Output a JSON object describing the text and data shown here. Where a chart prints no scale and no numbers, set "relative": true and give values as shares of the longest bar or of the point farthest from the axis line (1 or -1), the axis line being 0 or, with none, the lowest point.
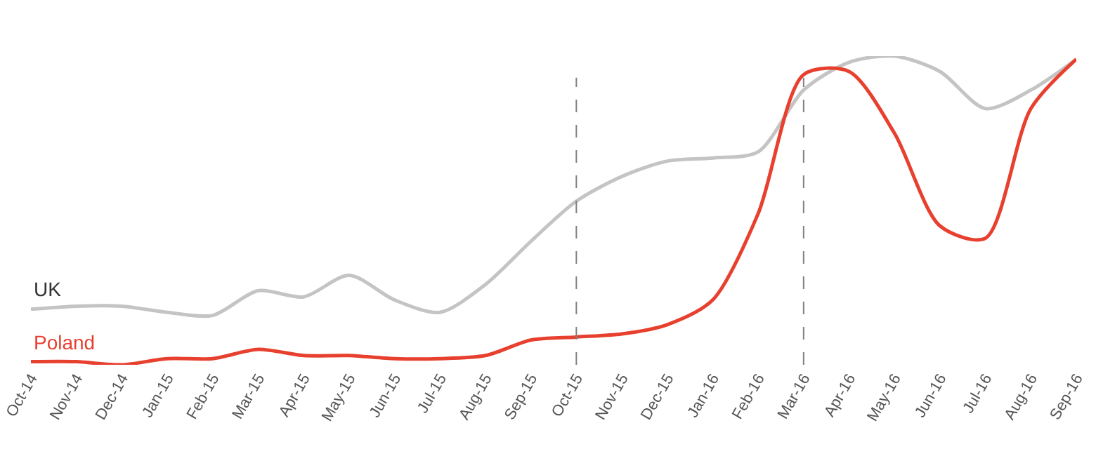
{
  "chart_data": {
    "type": "line",
    "relative": true,
    "legend": false,
    "categories": [
      "Oct-14",
      "Nov-14",
      "Dec-14",
      "Jan-15",
      "Feb-15",
      "Mar-15",
      "Apr-15",
      "May-15",
      "Jun-15",
      "Jul-15",
      "Aug-15",
      "Sep-15",
      "Oct-15",
      "Nov-15",
      "Dec-15",
      "Jan-16",
      "Feb-16",
      "Mar-16",
      "Apr-16",
      "May-16",
      "Jun-16",
      "Jul-16",
      "Aug-16",
      "Sep-16"
    ],
    "series": [
      {
        "name": "UK",
        "color": "#c4c4c4",
        "values": [
          0.18,
          0.19,
          0.19,
          0.17,
          0.16,
          0.24,
          0.22,
          0.29,
          0.21,
          0.17,
          0.26,
          0.4,
          0.53,
          0.61,
          0.66,
          0.67,
          0.69,
          0.89,
          0.98,
          1,
          0.95,
          0.83,
          0.89,
          0.99
        ]
      },
      {
        "name": "Poland",
        "color": "#e8402f",
        "values": [
          0.01,
          0.01,
          0,
          0.02,
          0.02,
          0.05,
          0.03,
          0.03,
          0.02,
          0.02,
          0.03,
          0.08,
          0.09,
          0.1,
          0.13,
          0.21,
          0.49,
          0.94,
          0.95,
          0.75,
          0.45,
          0.41,
          0.83,
          0.99
        ]
      }
    ],
    "ref_lines": [
      {
        "axis": "x",
        "value": "Oct-15",
        "color": "#808080",
        "line_style": "dashed"
      },
      {
        "axis": "x",
        "value": "Mar-16",
        "color": "#808080",
        "line_style": "dashed"
      }
    ]
  }
}
